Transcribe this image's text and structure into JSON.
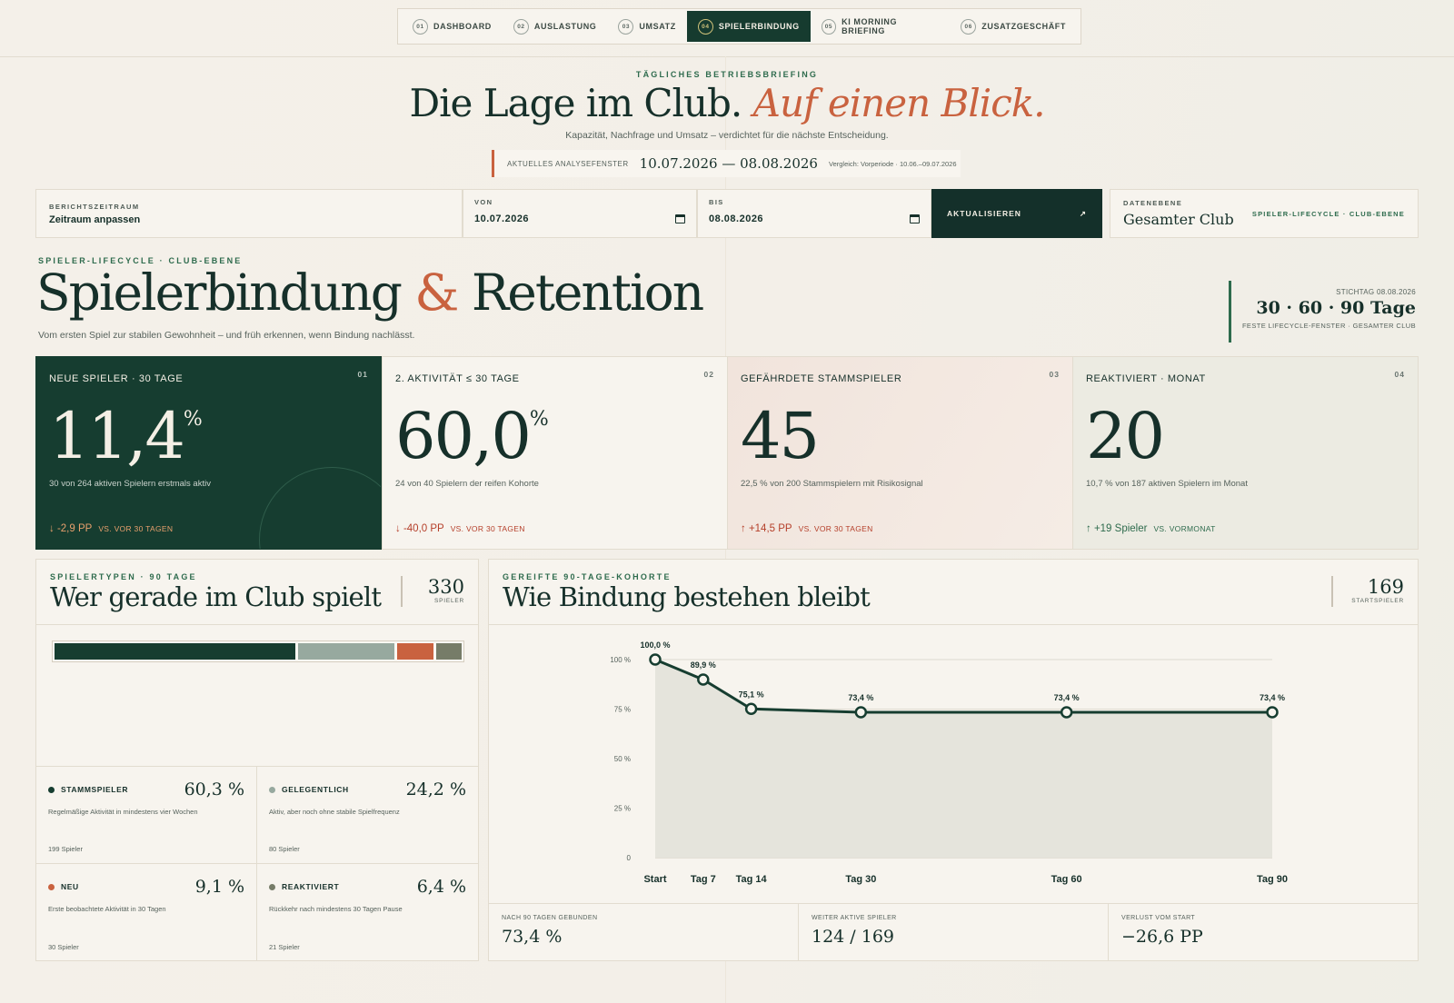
{
  "nav": {
    "tabs": [
      {
        "num": "01",
        "label": "DASHBOARD"
      },
      {
        "num": "02",
        "label": "AUSLASTUNG"
      },
      {
        "num": "03",
        "label": "UMSATZ"
      },
      {
        "num": "04",
        "label": "SPIELERBINDUNG",
        "active": true
      },
      {
        "num": "05",
        "label": "KI MORNING BRIEFING"
      },
      {
        "num": "06",
        "label": "ZUSATZGESCHÄFT"
      }
    ]
  },
  "header": {
    "eyebrow": "TÄGLICHES BETRIEBSBRIEFING",
    "title_main": "Die Lage im Club.",
    "title_accent": "Auf einen Blick.",
    "subtitle": "Kapazität, Nachfrage und Umsatz – verdichtet für die nächste Entscheidung.",
    "window_label": "AKTUELLES ANALYSEFENSTER",
    "window_dates": "10.07.2026 — 08.08.2026",
    "window_compare": "Vergleich: Vorperiode · 10.06.–09.07.2026"
  },
  "filters": {
    "period_label": "BERICHTSZEITRAUM",
    "period_value": "Zeitraum anpassen",
    "from_label": "VON",
    "from_value": "10.07.2026",
    "to_label": "BIS",
    "to_value": "08.08.2026",
    "update_label": "AKTUALISIEREN",
    "update_icon": "↗",
    "data_label": "DATENEBENE",
    "data_value": "Gesamter Club",
    "data_tag": "SPIELER-LIFECYCLE · CLUB-EBENE"
  },
  "section": {
    "eyebrow": "SPIELER-LIFECYCLE · CLUB-EBENE",
    "title_a": "Spielerbindung",
    "title_amp": "&",
    "title_b": "Retention",
    "subtitle": "Vom ersten Spiel zur stabilen Gewohnheit – und früh erkennen, wenn Bindung nachlässt.",
    "stichtag": "STICHTAG 08.08.2026",
    "windows": "30 · 60 · 90 Tage",
    "windows_sub": "FESTE LIFECYCLE-FENSTER · GESAMTER CLUB"
  },
  "kpis": [
    {
      "label": "NEUE SPIELER · 30 TAGE",
      "no": "01",
      "value": "11,4",
      "unit": "%",
      "sub": "30 von 264 aktiven Spielern erstmals aktiv",
      "delta": "↓ -2,9 PP",
      "vs": "VS. VOR 30 TAGEN"
    },
    {
      "label": "2. AKTIVITÄT ≤ 30 TAGE",
      "no": "02",
      "value": "60,0",
      "unit": "%",
      "sub": "24 von 40 Spielern der reifen Kohorte",
      "delta": "↓ -40,0 PP",
      "vs": "VS. VOR 30 TAGEN"
    },
    {
      "label": "GEFÄHRDETE STAMMSPIELER",
      "no": "03",
      "value": "45",
      "unit": "",
      "sub": "22,5 % von 200 Stammspielern mit Risikosignal",
      "delta": "↑ +14,5 PP",
      "vs": "VS. VOR 30 TAGEN"
    },
    {
      "label": "REAKTIVIERT · MONAT",
      "no": "04",
      "value": "20",
      "unit": "",
      "sub": "10,7 % von 187 aktiven Spielern im Monat",
      "delta": "↑ +19 Spieler",
      "vs": "VS. VORMONAT"
    }
  ],
  "types_panel": {
    "eyebrow": "SPIELERTYPEN · 90 TAGE",
    "title": "Wer gerade im Club spielt",
    "count": "330",
    "count_unit": "SPIELER",
    "types": [
      {
        "name": "STAMMSPIELER",
        "pct": "60,3 %",
        "share": 60.3,
        "color": "#163d30",
        "desc": "Regelmäßige Aktivität in mindestens vier Wochen",
        "count": "199 Spieler"
      },
      {
        "name": "GELEGENTLICH",
        "pct": "24,2 %",
        "share": 24.2,
        "color": "#97a99f",
        "desc": "Aktiv, aber noch ohne stabile Spielfrequenz",
        "count": "80 Spieler"
      },
      {
        "name": "NEU",
        "pct": "9,1 %",
        "share": 9.1,
        "color": "#c9623f",
        "desc": "Erste beobachtete Aktivität in 30 Tagen",
        "count": "30 Spieler"
      },
      {
        "name": "REAKTIVIERT",
        "pct": "6,4 %",
        "share": 6.4,
        "color": "#767c68",
        "desc": "Rückkehr nach mindestens 30 Tagen Pause",
        "count": "21 Spieler"
      }
    ]
  },
  "retention_panel": {
    "eyebrow": "GEREIFTE 90-TAGE-KOHORTE",
    "title": "Wie Bindung bestehen bleibt",
    "count": "169",
    "count_unit": "STARTSPIELER",
    "footer": [
      {
        "label": "NACH 90 TAGEN GEBUNDEN",
        "value": "73,4 %"
      },
      {
        "label": "WEITER AKTIVE SPIELER",
        "value": "124 / 169"
      },
      {
        "label": "VERLUST VOM START",
        "value": "−26,6 PP"
      }
    ]
  },
  "chart_data": {
    "type": "area",
    "x": [
      "Start",
      "Tag 7",
      "Tag 14",
      "Tag 30",
      "Tag 60",
      "Tag 90"
    ],
    "x_days": [
      0,
      7,
      14,
      30,
      60,
      90
    ],
    "values": [
      100.0,
      89.9,
      75.1,
      73.4,
      73.4,
      73.4
    ],
    "labels": [
      "100,0 %",
      "89,9 %",
      "75,1 %",
      "73,4 %",
      "73,4 %",
      "73,4 %"
    ],
    "ylim": [
      0,
      100
    ],
    "yticks": [
      {
        "v": 100,
        "label": "100 %"
      },
      {
        "v": 75,
        "label": "75 %"
      },
      {
        "v": 50,
        "label": "50 %"
      },
      {
        "v": 25,
        "label": "25 %"
      },
      {
        "v": 0,
        "label": "0"
      }
    ],
    "grid": true,
    "line_color": "#163d30",
    "fill_color": "#e5e4dc"
  }
}
